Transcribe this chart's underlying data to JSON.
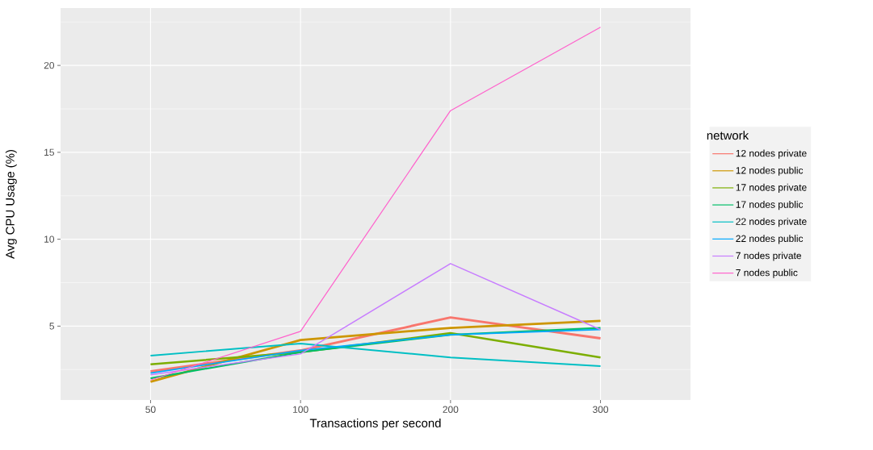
{
  "chart_data": {
    "type": "line",
    "xlabel": "Transactions per second",
    "ylabel": "Avg CPU Usage (%)",
    "legend_title": "network",
    "categories": [
      "50",
      "100",
      "200",
      "300"
    ],
    "series": [
      {
        "name": "12 nodes private",
        "color": "#F8766D",
        "values": [
          2.4,
          3.6,
          5.5,
          4.3
        ]
      },
      {
        "name": "12 nodes public",
        "color": "#CD9600",
        "values": [
          1.8,
          4.2,
          4.9,
          5.3
        ]
      },
      {
        "name": "17 nodes private",
        "color": "#7CAE00",
        "values": [
          2.8,
          3.5,
          4.6,
          3.2
        ]
      },
      {
        "name": "17 nodes public",
        "color": "#00BE67",
        "values": [
          2.0,
          3.5,
          4.5,
          4.9
        ]
      },
      {
        "name": "22 nodes private",
        "color": "#00BFC4",
        "values": [
          3.3,
          4.0,
          3.2,
          2.7
        ]
      },
      {
        "name": "22 nodes public",
        "color": "#00A9FF",
        "values": [
          2.3,
          3.6,
          4.5,
          4.8
        ]
      },
      {
        "name": "7 nodes private",
        "color": "#C77CFF",
        "values": [
          2.2,
          3.4,
          8.6,
          4.8
        ]
      },
      {
        "name": "7 nodes public",
        "color": "#FF61CC",
        "values": [
          1.9,
          4.7,
          17.4,
          22.2
        ]
      }
    ],
    "ylim": [
      0.75,
      23.3
    ],
    "yticks": [
      5,
      10,
      15,
      20
    ],
    "grid": true,
    "legend": "right",
    "line_style": "solid",
    "marker": "none"
  }
}
